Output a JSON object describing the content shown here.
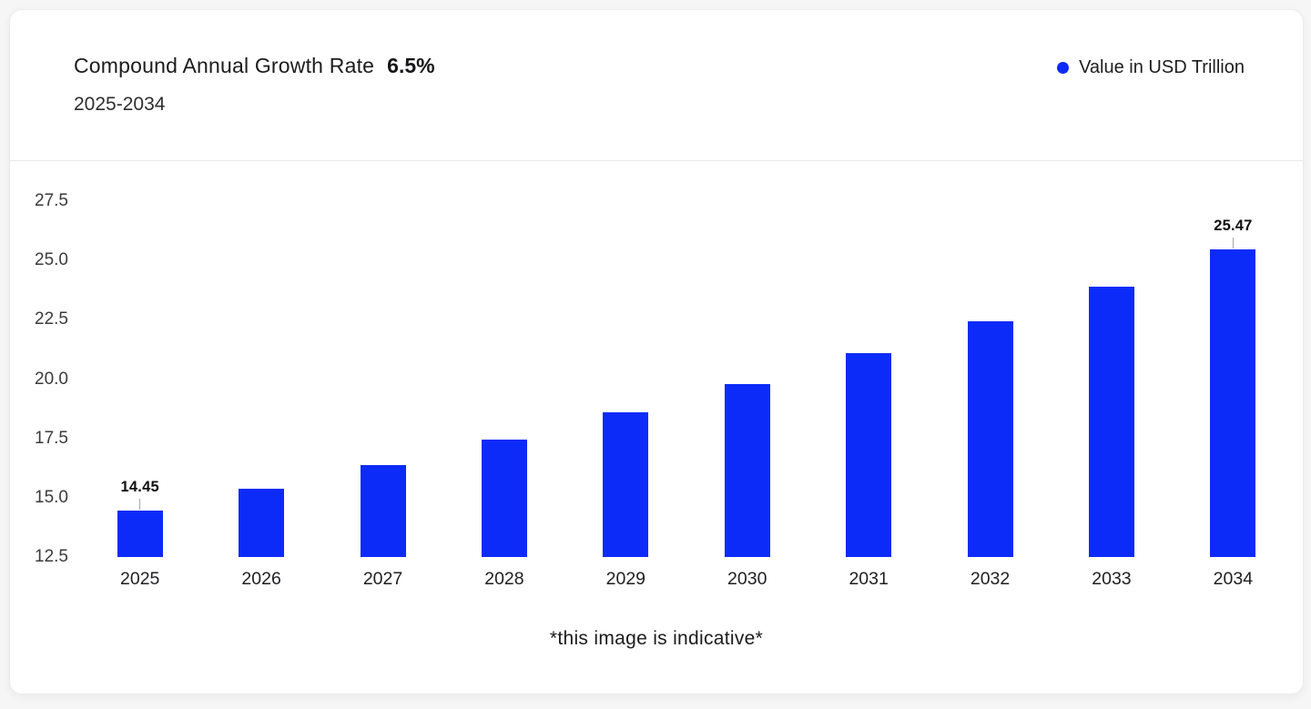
{
  "card": {
    "title": "Compound Annual Growth Rate",
    "title_highlight": "6.5%",
    "subtitle": "2025-2034"
  },
  "legend": {
    "items": [
      {
        "label": "Value in USD Trillion",
        "marker_color": "#0d2bf8"
      }
    ]
  },
  "footer": {
    "note": "*this image is indicative*"
  },
  "chart_data": {
    "type": "bar",
    "title": "Compound Annual Growth Rate 6.5%",
    "subtitle": "2025-2034",
    "series_name": "Value in USD Trillion",
    "categories": [
      "2025",
      "2026",
      "2027",
      "2028",
      "2029",
      "2030",
      "2031",
      "2032",
      "2033",
      "2034"
    ],
    "values": [
      14.45,
      15.39,
      16.39,
      17.45,
      18.59,
      19.8,
      21.08,
      22.45,
      23.91,
      25.47
    ],
    "point_labels": [
      {
        "index": 0,
        "text": "14.45"
      },
      {
        "index": 9,
        "text": "25.47"
      }
    ],
    "cagr_percent": 6.5,
    "ylim": [
      12.5,
      27.5
    ],
    "yticks": [
      12.5,
      15.0,
      17.5,
      20.0,
      22.5,
      25.0,
      27.5
    ],
    "ytick_decimals": 1,
    "grid": false,
    "bar_color": "#0d2bf8",
    "legend_position": "top-right"
  }
}
